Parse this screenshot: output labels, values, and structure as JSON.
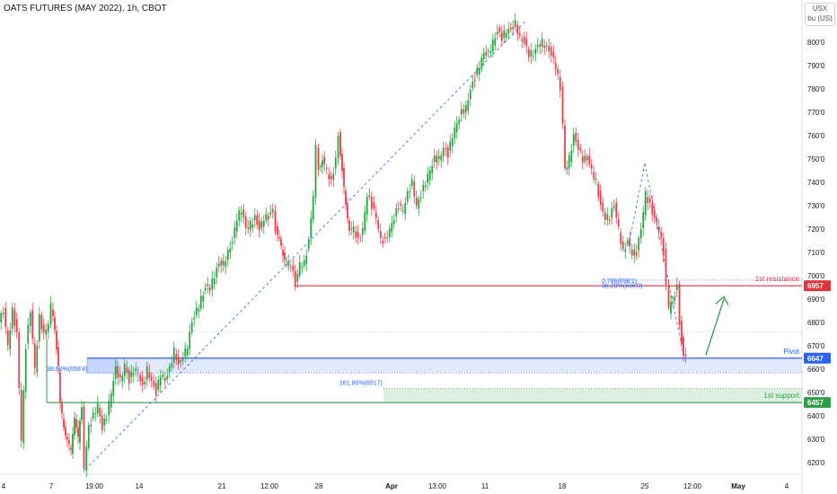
{
  "header": {
    "title": "OATS FUTURES (MAY 2022), 1h, CBOT",
    "currency": "USX",
    "unit": "bu (US)"
  },
  "chart_data": {
    "type": "candlestick",
    "symbol": "OATS FUTURES (MAY 2022)",
    "interval": "1h",
    "exchange": "CBOT",
    "ylim": [
      6150,
      8150
    ],
    "yticks": [
      "620'0",
      "630'0",
      "640'0",
      "650'0",
      "660'0",
      "670'0",
      "680'0",
      "690'0",
      "700'0",
      "710'0",
      "720'0",
      "730'0",
      "740'0",
      "750'0",
      "760'0",
      "770'0",
      "780'0",
      "790'0",
      "800'0"
    ],
    "yticks_values": [
      6200,
      6300,
      6400,
      6500,
      6600,
      6700,
      6800,
      6900,
      7000,
      7100,
      7200,
      7300,
      7400,
      7500,
      7600,
      7700,
      7800,
      7900,
      8000
    ],
    "xticks": [
      {
        "label": "4",
        "bold": false
      },
      {
        "label": "7",
        "bold": false
      },
      {
        "label": "19:00",
        "bold": false
      },
      {
        "label": "14",
        "bold": false
      },
      {
        "label": "21",
        "bold": false
      },
      {
        "label": "12:00",
        "bold": false
      },
      {
        "label": "28",
        "bold": false
      },
      {
        "label": "Apr",
        "bold": true
      },
      {
        "label": "13:00",
        "bold": false
      },
      {
        "label": "11",
        "bold": false
      },
      {
        "label": "18",
        "bold": false
      },
      {
        "label": "25",
        "bold": false
      },
      {
        "label": "12:00",
        "bold": false
      },
      {
        "label": "May",
        "bold": true
      },
      {
        "label": "4",
        "bold": false
      }
    ],
    "levels": [
      {
        "name": "1st resistance",
        "value": 6957,
        "tag": "6957",
        "color": "#e0333c"
      },
      {
        "name": "Pivot",
        "value": 6647,
        "tag": "6647",
        "color": "#2962ff"
      },
      {
        "name": "1st support",
        "value": 6457,
        "tag": "6457",
        "color": "#2e9e48"
      }
    ],
    "fib_labels": [
      {
        "text": "0.786(698'1)",
        "value": 6981
      },
      {
        "text": "38.20%(696'0)",
        "value": 6960
      },
      {
        "text": "38.60%(658'4)",
        "value": 6584
      },
      {
        "text": "161.80%(6517)",
        "value": 6517
      }
    ],
    "path_points": [
      [
        0,
        6800
      ],
      [
        5,
        6850
      ],
      [
        10,
        6700
      ],
      [
        15,
        6850
      ],
      [
        20,
        6750
      ],
      [
        25,
        6300
      ],
      [
        30,
        6700
      ],
      [
        35,
        6850
      ],
      [
        40,
        6600
      ],
      [
        45,
        6820
      ],
      [
        50,
        6750
      ],
      [
        55,
        6800
      ],
      [
        58,
        6870
      ],
      [
        62,
        6780
      ],
      [
        66,
        6600
      ],
      [
        68,
        6450
      ],
      [
        72,
        6350
      ],
      [
        76,
        6300
      ],
      [
        80,
        6250
      ],
      [
        84,
        6400
      ],
      [
        88,
        6300
      ],
      [
        92,
        6450
      ],
      [
        95,
        6180
      ],
      [
        100,
        6350
      ],
      [
        105,
        6400
      ],
      [
        110,
        6450
      ],
      [
        115,
        6350
      ],
      [
        120,
        6400
      ],
      [
        125,
        6500
      ],
      [
        130,
        6600
      ],
      [
        135,
        6550
      ],
      [
        140,
        6620
      ],
      [
        145,
        6550
      ],
      [
        150,
        6600
      ],
      [
        155,
        6580
      ],
      [
        160,
        6520
      ],
      [
        165,
        6600
      ],
      [
        170,
        6550
      ],
      [
        175,
        6500
      ],
      [
        180,
        6580
      ],
      [
        185,
        6550
      ],
      [
        190,
        6600
      ],
      [
        195,
        6680
      ],
      [
        200,
        6620
      ],
      [
        205,
        6650
      ],
      [
        210,
        6700
      ],
      [
        215,
        6800
      ],
      [
        220,
        6850
      ],
      [
        225,
        6900
      ],
      [
        230,
        6950
      ],
      [
        235,
        6950
      ],
      [
        240,
        7000
      ],
      [
        245,
        7050
      ],
      [
        250,
        7050
      ],
      [
        255,
        7100
      ],
      [
        260,
        7150
      ],
      [
        265,
        7250
      ],
      [
        270,
        7280
      ],
      [
        275,
        7200
      ],
      [
        280,
        7220
      ],
      [
        285,
        7250
      ],
      [
        290,
        7200
      ],
      [
        295,
        7250
      ],
      [
        300,
        7250
      ],
      [
        305,
        7280
      ],
      [
        308,
        7200
      ],
      [
        312,
        7150
      ],
      [
        316,
        7100
      ],
      [
        320,
        7050
      ],
      [
        325,
        7050
      ],
      [
        330,
        6960
      ],
      [
        335,
        7050
      ],
      [
        340,
        7050
      ],
      [
        345,
        7150
      ],
      [
        350,
        7350
      ],
      [
        353,
        7550
      ],
      [
        356,
        7450
      ],
      [
        360,
        7500
      ],
      [
        365,
        7450
      ],
      [
        370,
        7400
      ],
      [
        375,
        7500
      ],
      [
        378,
        7600
      ],
      [
        382,
        7450
      ],
      [
        386,
        7300
      ],
      [
        390,
        7200
      ],
      [
        395,
        7200
      ],
      [
        400,
        7150
      ],
      [
        405,
        7200
      ],
      [
        410,
        7350
      ],
      [
        415,
        7300
      ],
      [
        420,
        7250
      ],
      [
        425,
        7150
      ],
      [
        430,
        7150
      ],
      [
        435,
        7200
      ],
      [
        440,
        7250
      ],
      [
        445,
        7300
      ],
      [
        450,
        7280
      ],
      [
        455,
        7350
      ],
      [
        460,
        7400
      ],
      [
        465,
        7300
      ],
      [
        470,
        7350
      ],
      [
        475,
        7400
      ],
      [
        480,
        7450
      ],
      [
        485,
        7500
      ],
      [
        490,
        7500
      ],
      [
        495,
        7550
      ],
      [
        500,
        7520
      ],
      [
        505,
        7600
      ],
      [
        510,
        7650
      ],
      [
        515,
        7700
      ],
      [
        520,
        7720
      ],
      [
        525,
        7800
      ],
      [
        530,
        7850
      ],
      [
        535,
        7900
      ],
      [
        540,
        7950
      ],
      [
        545,
        7950
      ],
      [
        550,
        8000
      ],
      [
        555,
        8050
      ],
      [
        560,
        8020
      ],
      [
        565,
        8050
      ],
      [
        570,
        8050
      ],
      [
        575,
        8080
      ],
      [
        580,
        8020
      ],
      [
        585,
        8000
      ],
      [
        590,
        7950
      ],
      [
        595,
        7950
      ],
      [
        600,
        7980
      ],
      [
        605,
        8000
      ],
      [
        610,
        7980
      ],
      [
        615,
        7950
      ],
      [
        620,
        7900
      ],
      [
        625,
        7800
      ],
      [
        628,
        7650
      ],
      [
        630,
        7450
      ],
      [
        635,
        7500
      ],
      [
        640,
        7600
      ],
      [
        645,
        7550
      ],
      [
        650,
        7500
      ],
      [
        655,
        7500
      ],
      [
        660,
        7450
      ],
      [
        665,
        7400
      ],
      [
        670,
        7300
      ],
      [
        675,
        7250
      ],
      [
        680,
        7250
      ],
      [
        685,
        7300
      ],
      [
        690,
        7200
      ],
      [
        695,
        7100
      ],
      [
        700,
        7150
      ],
      [
        705,
        7100
      ],
      [
        710,
        7100
      ],
      [
        715,
        7200
      ],
      [
        720,
        7350
      ],
      [
        725,
        7300
      ],
      [
        730,
        7250
      ],
      [
        735,
        7200
      ],
      [
        740,
        7100
      ],
      [
        743,
        6950
      ],
      [
        746,
        6850
      ],
      [
        750,
        6900
      ],
      [
        755,
        6950
      ],
      [
        758,
        6800
      ],
      [
        762,
        6650
      ],
      [
        765,
        6640
      ]
    ]
  }
}
